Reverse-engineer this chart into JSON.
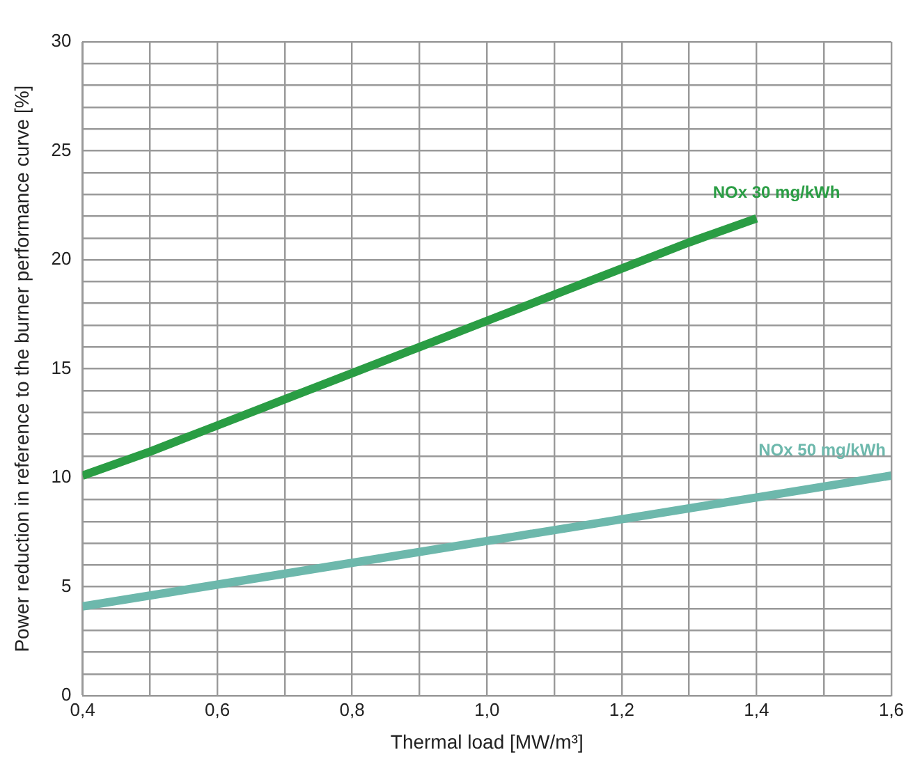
{
  "chart_data": {
    "type": "line",
    "xlabel": "Thermal load [MW/m³]",
    "ylabel": "Power reduction in reference to the burner performance curve [%]",
    "series": [
      {
        "name": "NOx 30 mg/kWh",
        "color": "#2a9d44",
        "x": [
          0.4,
          0.5,
          0.6,
          0.7,
          0.8,
          0.9,
          1.0,
          1.1,
          1.2,
          1.3,
          1.4
        ],
        "values": [
          10.1,
          11.2,
          12.4,
          13.6,
          14.8,
          16.0,
          17.2,
          18.4,
          19.6,
          20.8,
          21.9
        ]
      },
      {
        "name": "NOx 50 mg/kWh",
        "color": "#6db8ac",
        "x": [
          0.4,
          0.6,
          0.8,
          1.0,
          1.2,
          1.4,
          1.6
        ],
        "values": [
          4.1,
          5.1,
          6.1,
          7.1,
          8.1,
          9.1,
          10.1
        ]
      }
    ],
    "xlim": [
      0.4,
      1.6
    ],
    "xticks": [
      {
        "value": 0.4,
        "label": "0,4"
      },
      {
        "value": 0.5,
        "label": null
      },
      {
        "value": 0.6,
        "label": "0,6"
      },
      {
        "value": 0.7,
        "label": null
      },
      {
        "value": 0.8,
        "label": "0,8"
      },
      {
        "value": 0.9,
        "label": null
      },
      {
        "value": 1.0,
        "label": "1,0"
      },
      {
        "value": 1.1,
        "label": null
      },
      {
        "value": 1.2,
        "label": "1,2"
      },
      {
        "value": 1.3,
        "label": null
      },
      {
        "value": 1.4,
        "label": "1,4"
      },
      {
        "value": 1.5,
        "label": null
      },
      {
        "value": 1.6,
        "label": "1,6"
      }
    ],
    "ylim": [
      0,
      30
    ],
    "yticks": [
      0,
      {
        "value": 1,
        "label": null
      },
      {
        "value": 2,
        "label": null
      },
      {
        "value": 3,
        "label": null
      },
      {
        "value": 4,
        "label": null
      },
      5,
      {
        "value": 6,
        "label": null
      },
      {
        "value": 7,
        "label": null
      },
      {
        "value": 8,
        "label": null
      },
      {
        "value": 9,
        "label": null
      },
      10,
      {
        "value": 11,
        "label": null
      },
      {
        "value": 12,
        "label": null
      },
      {
        "value": 13,
        "label": null
      },
      {
        "value": 14,
        "label": null
      },
      15,
      {
        "value": 16,
        "label": null
      },
      {
        "value": 17,
        "label": null
      },
      {
        "value": 18,
        "label": null
      },
      {
        "value": 19,
        "label": null
      },
      20,
      {
        "value": 21,
        "label": null
      },
      {
        "value": 22,
        "label": null
      },
      {
        "value": 23,
        "label": null
      },
      {
        "value": 24,
        "label": null
      },
      25,
      {
        "value": 26,
        "label": null
      },
      {
        "value": 27,
        "label": null
      },
      {
        "value": 28,
        "label": null
      },
      {
        "value": 29,
        "label": null
      },
      30
    ],
    "grid": true,
    "legend": false,
    "marker": "none",
    "line_style": "solid"
  }
}
